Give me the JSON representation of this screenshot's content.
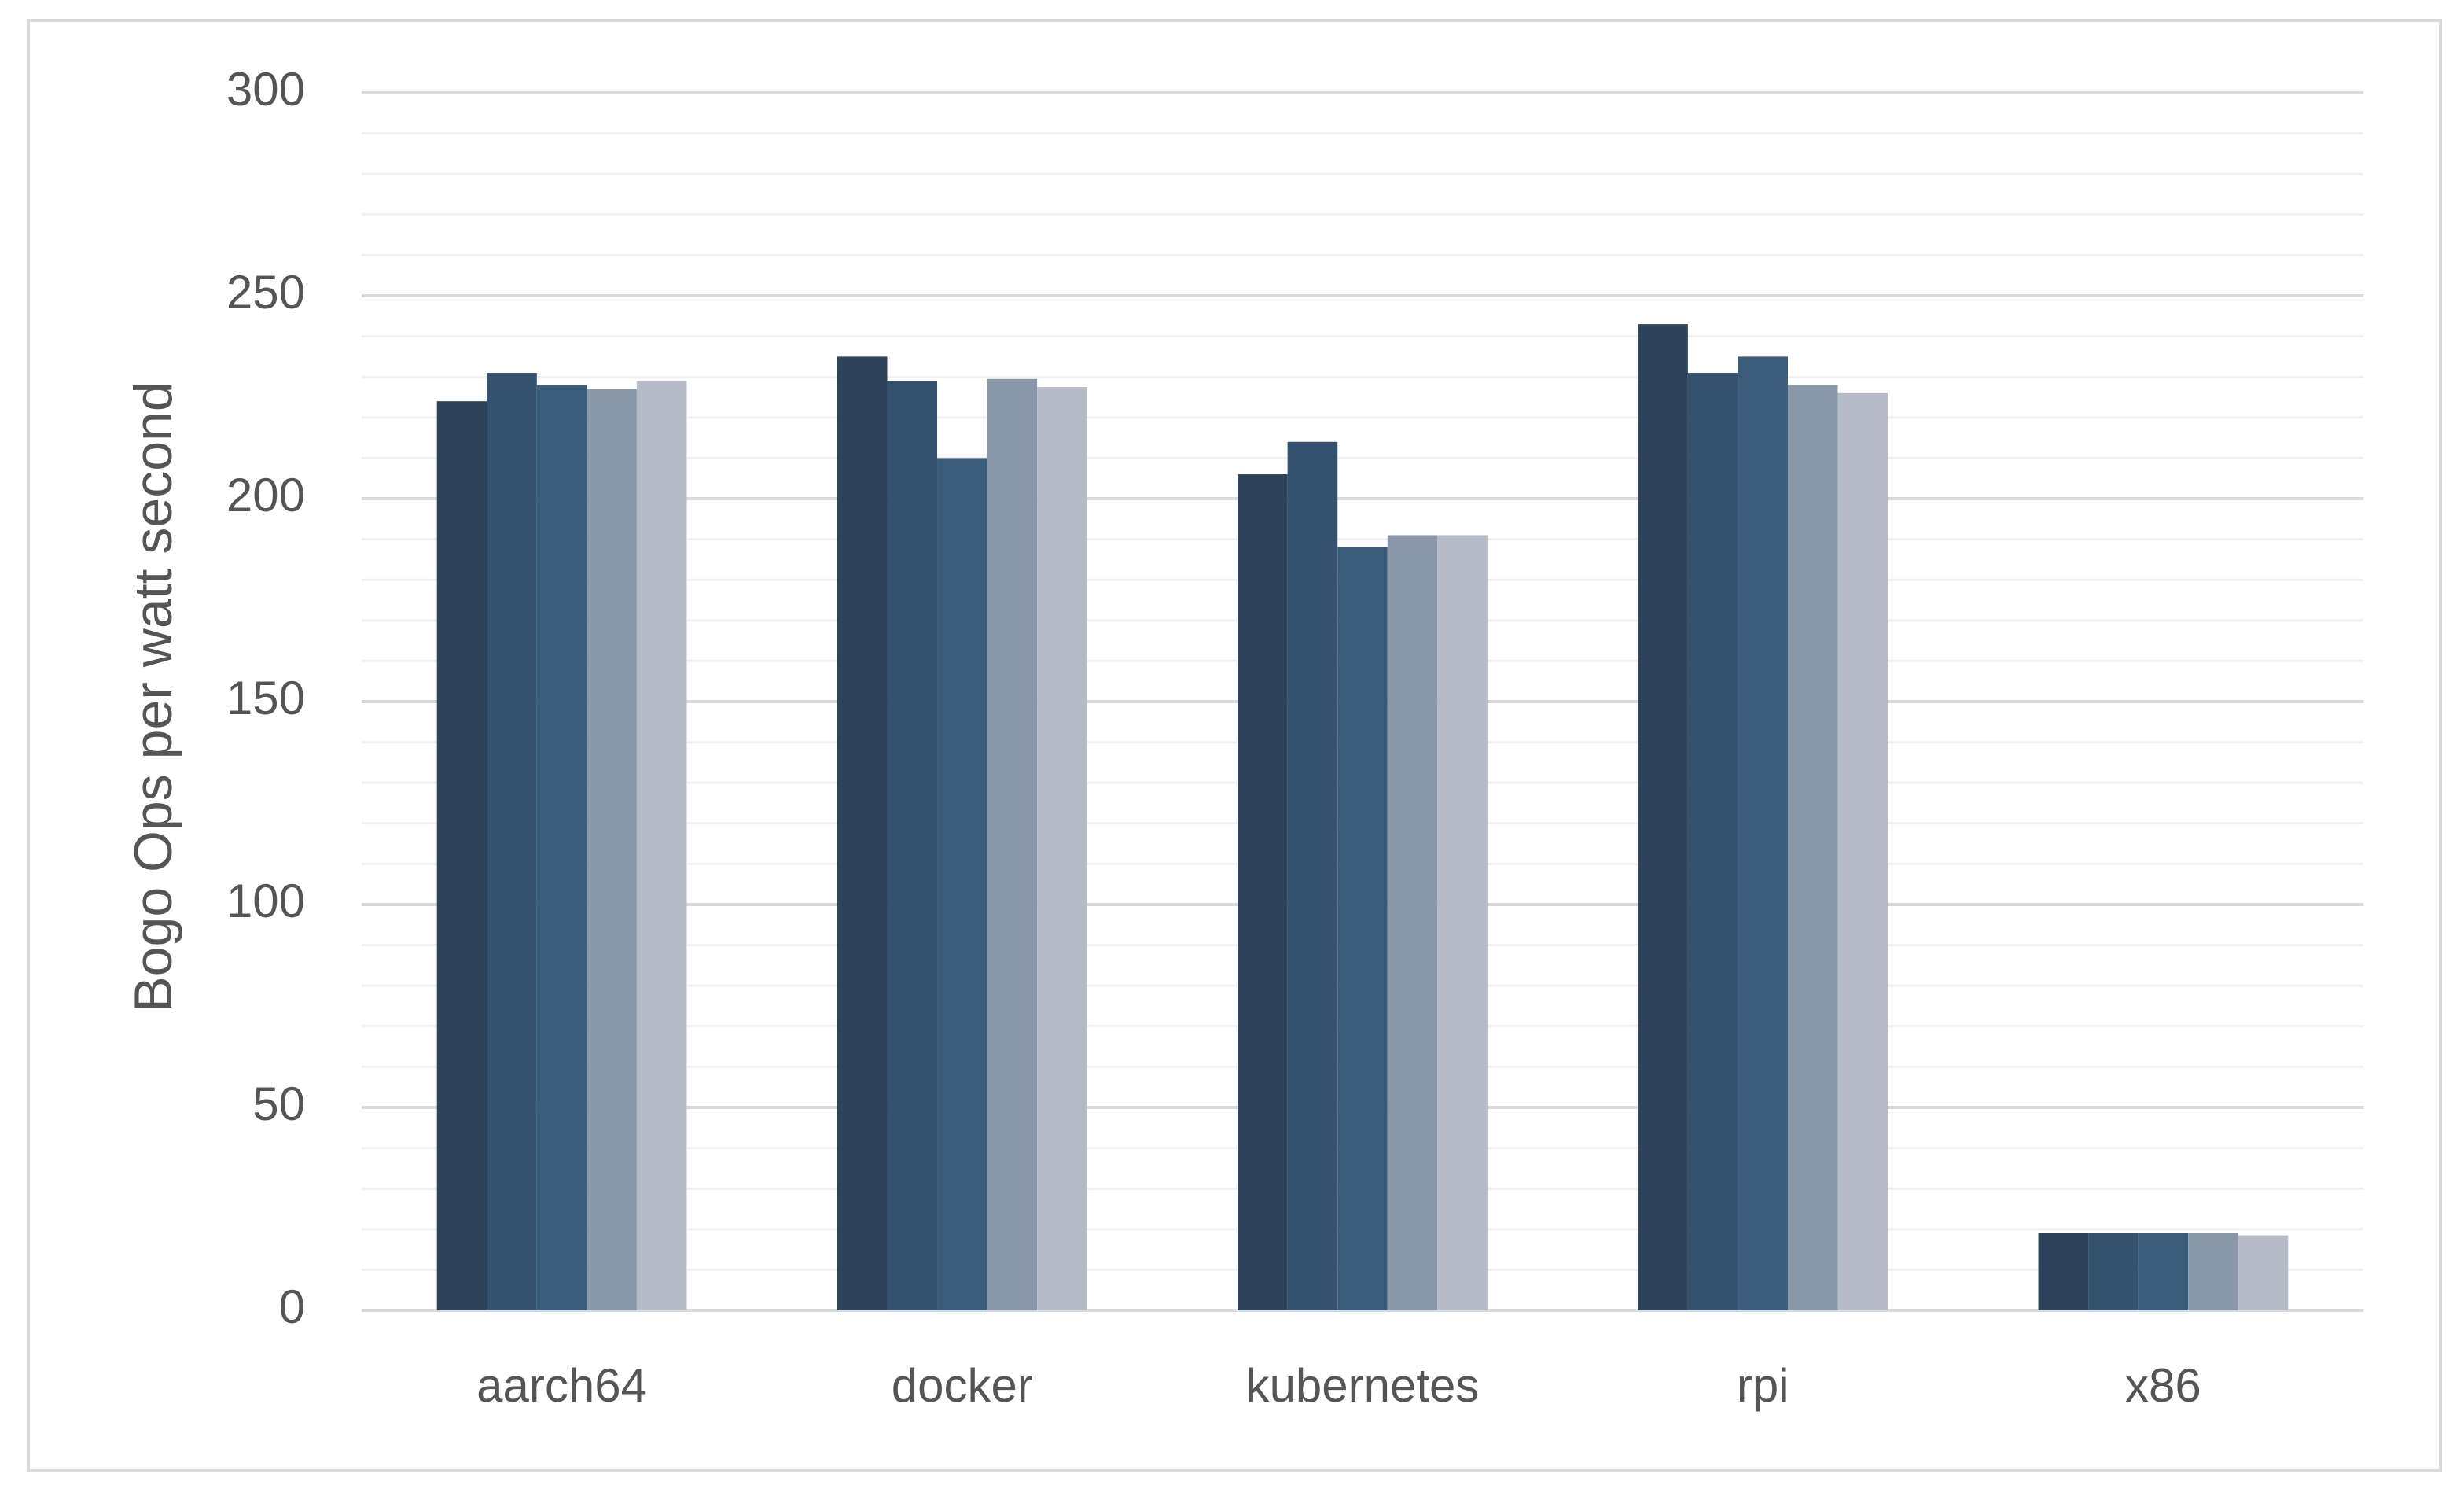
{
  "chart_data": {
    "type": "bar",
    "y_label": "Bogo Ops per watt second",
    "categories": [
      "aarch64",
      "docker",
      "kubernetes",
      "rpi",
      "x86"
    ],
    "series": [
      {
        "color": "#2c4359",
        "values": [
          224,
          235,
          206,
          243,
          19
        ]
      },
      {
        "color": "#34526d",
        "values": [
          231,
          229,
          214,
          231,
          19
        ]
      },
      {
        "color": "#3b5d7c",
        "values": [
          228,
          210,
          188,
          235,
          19
        ]
      },
      {
        "color": "#8a97a8",
        "values": [
          227,
          229.5,
          191,
          228,
          19
        ]
      },
      {
        "color": "#b5bcc7",
        "values": [
          229,
          227.5,
          191,
          226,
          18.5
        ]
      }
    ],
    "ylim": [
      0,
      300
    ],
    "yticks": [
      0,
      50,
      100,
      150,
      200,
      250,
      300
    ],
    "minor_yticks": [
      10,
      20,
      30,
      40,
      60,
      70,
      80,
      90,
      110,
      120,
      130,
      140,
      160,
      170,
      180,
      190,
      210,
      220,
      230,
      240,
      260,
      270,
      280,
      290
    ],
    "grid": true
  }
}
